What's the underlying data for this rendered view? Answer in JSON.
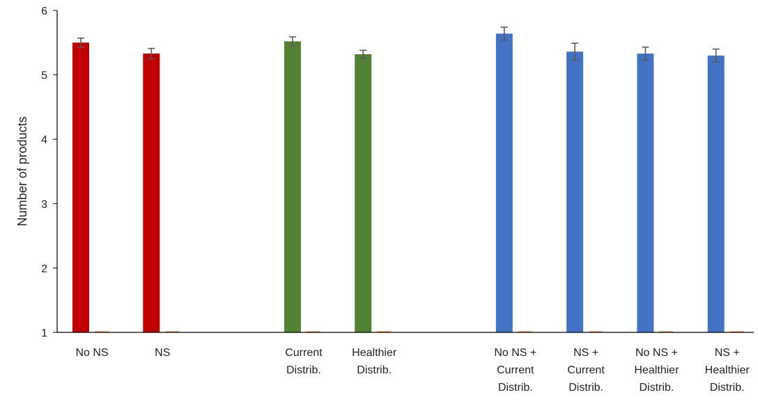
{
  "chart_data": {
    "type": "bar",
    "title": "",
    "xlabel": "",
    "ylabel": "Number of products",
    "ylim": [
      1,
      6
    ],
    "yticks": [
      "1",
      "2",
      "3",
      "4",
      "5",
      "6"
    ],
    "grid": false,
    "categories": [
      {
        "lines": [
          "No NS"
        ],
        "value": 5.5,
        "error": 0.07,
        "color": "#C00000",
        "slot": 0
      },
      {
        "lines": [
          "NS"
        ],
        "value": 5.33,
        "error": 0.08,
        "color": "#C00000",
        "slot": 1
      },
      {
        "lines": [
          "Current",
          "Distrib."
        ],
        "value": 5.52,
        "error": 0.07,
        "color": "#548235",
        "slot": 3
      },
      {
        "lines": [
          "Healthier",
          "Distrib."
        ],
        "value": 5.32,
        "error": 0.06,
        "color": "#548235",
        "slot": 4
      },
      {
        "lines": [
          "No NS +",
          "Current",
          "Distrib."
        ],
        "value": 5.64,
        "error": 0.1,
        "color": "#4472C4",
        "slot": 6
      },
      {
        "lines": [
          "NS +",
          "Current",
          "Distrib."
        ],
        "value": 5.36,
        "error": 0.13,
        "color": "#4472C4",
        "slot": 7
      },
      {
        "lines": [
          "No NS +",
          "Healthier",
          "Distrib."
        ],
        "value": 5.33,
        "error": 0.1,
        "color": "#4472C4",
        "slot": 8
      },
      {
        "lines": [
          "NS +",
          "Healthier",
          "Distrib."
        ],
        "value": 5.3,
        "error": 0.1,
        "color": "#4472C4",
        "slot": 9
      }
    ],
    "secondary_series": {
      "value": 1.0,
      "color": "#ED7D31"
    }
  }
}
